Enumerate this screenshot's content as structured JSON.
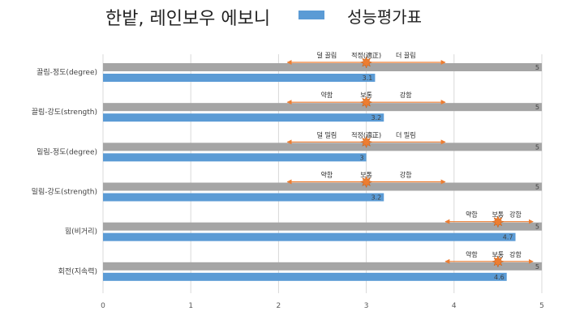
{
  "header": {
    "product_title": "한밭, 레인보우 에보니",
    "legend_label": "성능평가표"
  },
  "colors": {
    "score_bar": "#5B9BD5",
    "max_bar": "#A5A5A5",
    "arrow": "#ED7D31",
    "marker": "#ED7D31"
  },
  "chart_data": {
    "type": "bar",
    "orientation": "horizontal",
    "xlim": [
      0,
      5
    ],
    "xticks": [
      "0",
      "1",
      "2",
      "3",
      "4",
      "5"
    ],
    "grid": true,
    "categories": [
      "끌림-정도(degree)",
      "끌림-강도(strength)",
      "밀림-정도(degree)",
      "밀림-강도(strength)",
      "힘(비거리)",
      "회전(지속력)"
    ],
    "series": [
      {
        "name": "성능평가표",
        "values": [
          3.1,
          3.2,
          3,
          3.2,
          4.7,
          4.6
        ],
        "labels": [
          "3.1",
          "3.2",
          "3",
          "3.2",
          "4.7",
          "4.6"
        ]
      },
      {
        "values": [
          5,
          5,
          5,
          5,
          5,
          5
        ],
        "labels": [
          "5",
          "5",
          "5",
          "5",
          "5",
          "5"
        ]
      }
    ],
    "annotations": [
      {
        "left": "덜 끌림",
        "center": "적정(適正)",
        "right": "더 끌림",
        "marker": 3.0,
        "from": 2.1,
        "to": 3.9
      },
      {
        "left": "약함",
        "center": "보통",
        "right": "강함",
        "marker": 3.0,
        "from": 2.1,
        "to": 3.9
      },
      {
        "left": "덜 밀림",
        "center": "적정(適正)",
        "right": "더 밀림",
        "marker": 3.0,
        "from": 2.1,
        "to": 3.9
      },
      {
        "left": "약함",
        "center": "보통",
        "right": "강함",
        "marker": 3.0,
        "from": 2.1,
        "to": 3.9
      },
      {
        "left": "약함",
        "center": "보통",
        "right": "강함",
        "marker": 4.5,
        "from": 3.9,
        "to": 4.9
      },
      {
        "left": "약함",
        "center": "보통",
        "right": "강함",
        "marker": 4.5,
        "from": 3.9,
        "to": 4.9
      }
    ]
  }
}
